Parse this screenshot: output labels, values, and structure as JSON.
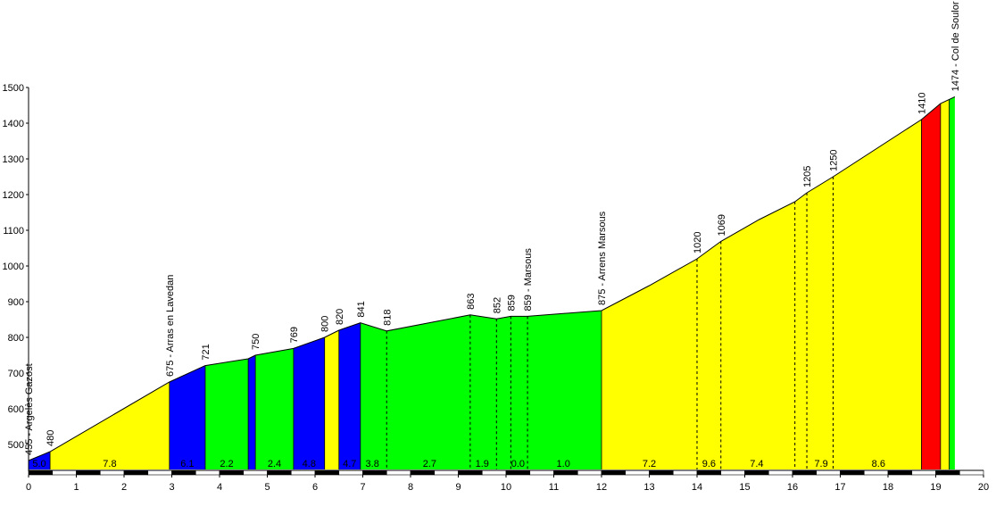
{
  "chart_data": {
    "type": "area",
    "title": "",
    "xlabel": "",
    "ylabel": "",
    "xlim": [
      0,
      20
    ],
    "ylim": [
      430,
      1500
    ],
    "x_ticks": [
      0,
      1,
      2,
      3,
      4,
      5,
      6,
      7,
      8,
      9,
      10,
      11,
      12,
      13,
      14,
      15,
      16,
      17,
      18,
      19,
      20
    ],
    "y_ticks": [
      500,
      600,
      700,
      800,
      900,
      1000,
      1100,
      1200,
      1300,
      1400,
      1500
    ],
    "profile": [
      {
        "x": 0.0,
        "y": 455
      },
      {
        "x": 0.45,
        "y": 480
      },
      {
        "x": 2.95,
        "y": 675
      },
      {
        "x": 3.7,
        "y": 721
      },
      {
        "x": 4.6,
        "y": 740
      },
      {
        "x": 4.75,
        "y": 750
      },
      {
        "x": 5.55,
        "y": 769
      },
      {
        "x": 6.2,
        "y": 800
      },
      {
        "x": 6.5,
        "y": 820
      },
      {
        "x": 6.95,
        "y": 841
      },
      {
        "x": 7.5,
        "y": 818
      },
      {
        "x": 9.25,
        "y": 863
      },
      {
        "x": 9.8,
        "y": 852
      },
      {
        "x": 10.1,
        "y": 859
      },
      {
        "x": 10.45,
        "y": 859
      },
      {
        "x": 12.0,
        "y": 875
      },
      {
        "x": 13.0,
        "y": 945
      },
      {
        "x": 14.0,
        "y": 1020
      },
      {
        "x": 14.5,
        "y": 1069
      },
      {
        "x": 15.3,
        "y": 1130
      },
      {
        "x": 16.05,
        "y": 1180
      },
      {
        "x": 16.3,
        "y": 1205
      },
      {
        "x": 16.85,
        "y": 1250
      },
      {
        "x": 18.7,
        "y": 1410
      },
      {
        "x": 19.1,
        "y": 1455
      },
      {
        "x": 19.4,
        "y": 1474
      }
    ],
    "segments": [
      {
        "x0": 0.0,
        "x1": 0.45,
        "color": "#0000ff",
        "label": "5.0"
      },
      {
        "x0": 0.45,
        "x1": 2.95,
        "color": "#ffff00",
        "label": "7.8"
      },
      {
        "x0": 2.95,
        "x1": 3.7,
        "color": "#0000ff",
        "label": "6.1"
      },
      {
        "x0": 3.7,
        "x1": 4.6,
        "color": "#00ff00",
        "label": "2.2"
      },
      {
        "x0": 4.6,
        "x1": 4.75,
        "color": "#0000ff",
        "label": ""
      },
      {
        "x0": 4.75,
        "x1": 5.55,
        "color": "#00ff00",
        "label": "2.4"
      },
      {
        "x0": 5.55,
        "x1": 6.2,
        "color": "#0000ff",
        "label": "4.8"
      },
      {
        "x0": 6.2,
        "x1": 6.5,
        "color": "#ffff00",
        "label": ""
      },
      {
        "x0": 6.5,
        "x1": 6.95,
        "color": "#0000ff",
        "label": "4.7"
      },
      {
        "x0": 6.95,
        "x1": 12.0,
        "color": "#00ff00",
        "label": ""
      },
      {
        "x0": 12.0,
        "x1": 18.7,
        "color": "#ffff00",
        "label": ""
      },
      {
        "x0": 18.7,
        "x1": 19.1,
        "color": "#ff0000",
        "label": ""
      },
      {
        "x0": 19.1,
        "x1": 19.28,
        "color": "#ffff00",
        "label": ""
      },
      {
        "x0": 19.28,
        "x1": 19.4,
        "color": "#00ff00",
        "label": ""
      }
    ],
    "bottom_labels": [
      {
        "x": 7.2,
        "text": "3.8"
      },
      {
        "x": 8.4,
        "text": "2.7"
      },
      {
        "x": 9.5,
        "text": "1.9"
      },
      {
        "x": 10.25,
        "text": "0.0"
      },
      {
        "x": 11.2,
        "text": "1.0"
      },
      {
        "x": 13.0,
        "text": "7.2"
      },
      {
        "x": 14.25,
        "text": "9.6"
      },
      {
        "x": 15.25,
        "text": "7.4"
      },
      {
        "x": 16.6,
        "text": "7.9"
      },
      {
        "x": 17.8,
        "text": "8.6"
      }
    ],
    "dashed_lines": [
      7.5,
      9.25,
      9.8,
      10.1,
      10.45,
      14.0,
      14.5,
      16.05,
      16.3,
      16.85
    ],
    "elevation_labels": [
      {
        "x": 0.0,
        "y": 455,
        "text": "455 - Argelès Gazost"
      },
      {
        "x": 0.45,
        "y": 480,
        "text": "480"
      },
      {
        "x": 2.95,
        "y": 675,
        "text": "675 - Arras en Lavedan"
      },
      {
        "x": 3.7,
        "y": 721,
        "text": "721"
      },
      {
        "x": 4.75,
        "y": 750,
        "text": "750"
      },
      {
        "x": 5.55,
        "y": 769,
        "text": "769"
      },
      {
        "x": 6.2,
        "y": 800,
        "text": "800"
      },
      {
        "x": 6.5,
        "y": 820,
        "text": "820"
      },
      {
        "x": 6.95,
        "y": 841,
        "text": "841"
      },
      {
        "x": 7.5,
        "y": 818,
        "text": "818"
      },
      {
        "x": 9.25,
        "y": 863,
        "text": "863"
      },
      {
        "x": 9.8,
        "y": 852,
        "text": "852"
      },
      {
        "x": 10.1,
        "y": 859,
        "text": "859"
      },
      {
        "x": 10.45,
        "y": 859,
        "text": "859 - Marsous"
      },
      {
        "x": 12.0,
        "y": 875,
        "text": "875 - Arrens Marsous"
      },
      {
        "x": 14.0,
        "y": 1020,
        "text": "1020"
      },
      {
        "x": 14.5,
        "y": 1069,
        "text": "1069"
      },
      {
        "x": 16.3,
        "y": 1205,
        "text": "1205"
      },
      {
        "x": 16.85,
        "y": 1250,
        "text": "1250"
      },
      {
        "x": 18.7,
        "y": 1410,
        "text": "1410"
      },
      {
        "x": 19.4,
        "y": 1474,
        "text": "1474 - Col de Soulor"
      }
    ]
  }
}
